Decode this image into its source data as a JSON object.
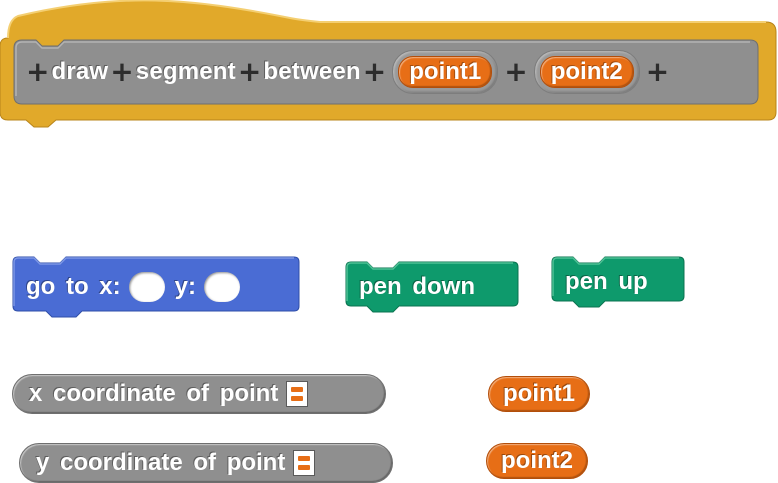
{
  "colors": {
    "hat_block": "#e1a92a",
    "prototype_slot": "#8f8f8f",
    "parameter": "#e76e16",
    "motion": "#4a6cd4",
    "pen": "#0e9a6c",
    "other_reporter": "#8f8f8f"
  },
  "custom_block": {
    "words": [
      "draw",
      "segment",
      "between"
    ],
    "params": [
      "point1",
      "point2"
    ],
    "plus_symbol": "+"
  },
  "motion_block": {
    "label_x": "go to x:",
    "label_y": "y:"
  },
  "pen_blocks": {
    "pen_down": "pen down",
    "pen_up": "pen up"
  },
  "reporters": {
    "x_coordinate": "x coordinate of point",
    "y_coordinate": "y coordinate of point",
    "point1": "point1",
    "point2": "point2"
  }
}
